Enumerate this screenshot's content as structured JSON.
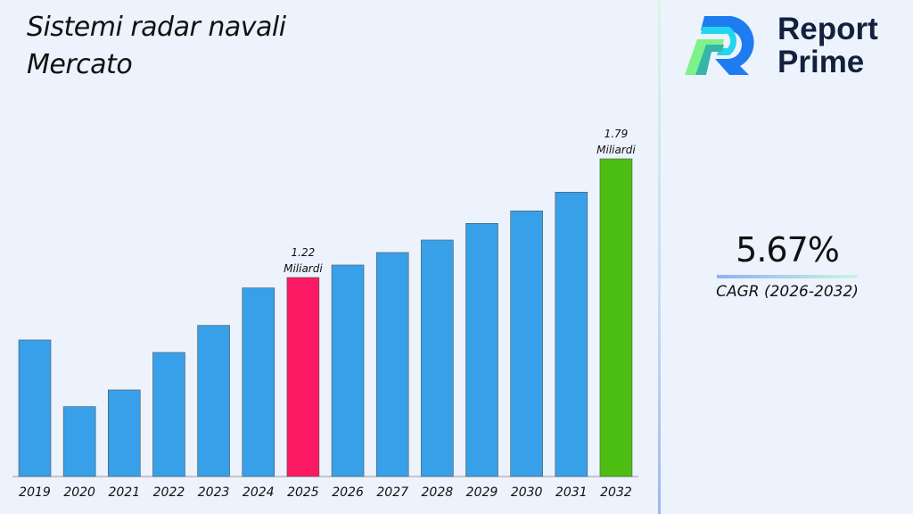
{
  "chart_data": {
    "type": "bar",
    "title": "Sistemi radar navali\nMercato",
    "title_lines": [
      "Sistemi radar navali",
      "Mercato"
    ],
    "categories": [
      "2019",
      "2020",
      "2021",
      "2022",
      "2023",
      "2024",
      "2025",
      "2026",
      "2027",
      "2028",
      "2029",
      "2030",
      "2031",
      "2032"
    ],
    "values": [
      0.92,
      0.6,
      0.68,
      0.86,
      0.99,
      1.17,
      1.22,
      1.28,
      1.34,
      1.4,
      1.48,
      1.54,
      1.63,
      1.79
    ],
    "unit": "Miliardi",
    "data_labels": [
      {
        "category": "2025",
        "value": "1.22",
        "unit": "Miliardi"
      },
      {
        "category": "2032",
        "value": "1.79",
        "unit": "Miliardi"
      }
    ],
    "colors": {
      "default": "#38a0e8",
      "highlight_2025": "#fc1a64",
      "highlight_2032": "#4cbe12"
    },
    "grid": false,
    "xlabel": "",
    "ylabel": ""
  },
  "brand": {
    "line1": "Report",
    "line2": "Prime"
  },
  "cagr": {
    "value": "5.67%",
    "label": "CAGR (2026-2032)"
  }
}
